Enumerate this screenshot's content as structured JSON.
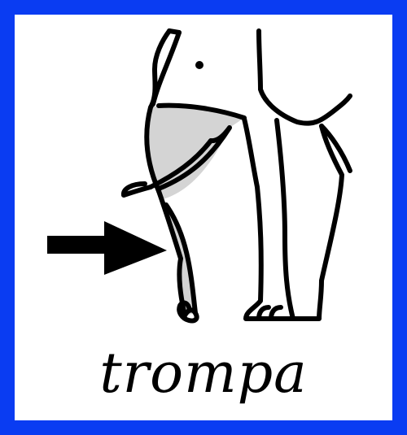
{
  "card": {
    "word": "trompa",
    "border_color": "#0a3cf2",
    "highlight_color": "#d4d4d4"
  },
  "pictogram": {
    "subject": "elephant-icon",
    "highlighted_part": "trunk",
    "pointer": "arrow-right-icon"
  }
}
